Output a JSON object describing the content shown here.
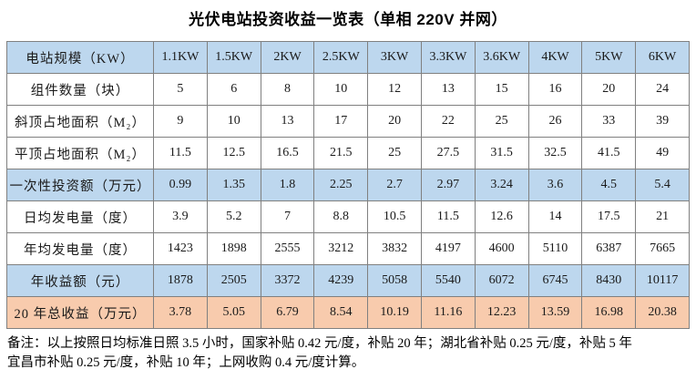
{
  "title": "光伏电站投资收益一览表（单相 220V 并网）",
  "table": {
    "rows": [
      {
        "label": "电站规模（KW）",
        "highlight": "blue",
        "values": [
          "1.1KW",
          "1.5KW",
          "2KW",
          "2.5KW",
          "3KW",
          "3.3KW",
          "3.6KW",
          "4KW",
          "5KW",
          "6KW"
        ]
      },
      {
        "label": "组件数量（块）",
        "highlight": "none",
        "values": [
          "5",
          "6",
          "8",
          "10",
          "12",
          "13",
          "15",
          "16",
          "20",
          "24"
        ]
      },
      {
        "label": "斜顶占地面积（M₂）",
        "highlight": "none",
        "values": [
          "9",
          "10",
          "13",
          "17",
          "20",
          "22",
          "25",
          "26",
          "33",
          "39"
        ]
      },
      {
        "label": "平顶占地面积（M₂）",
        "highlight": "none",
        "values": [
          "11.5",
          "12.5",
          "16.5",
          "21.5",
          "25",
          "27.5",
          "31.5",
          "32.5",
          "41.5",
          "49"
        ]
      },
      {
        "label": "一次性投资额（万元）",
        "highlight": "blue",
        "values": [
          "0.99",
          "1.35",
          "1.8",
          "2.25",
          "2.7",
          "2.97",
          "3.24",
          "3.6",
          "4.5",
          "5.4"
        ]
      },
      {
        "label": "日均发电量（度）",
        "highlight": "none",
        "values": [
          "3.9",
          "5.2",
          "7",
          "8.8",
          "10.5",
          "11.5",
          "12.6",
          "14",
          "17.5",
          "21"
        ]
      },
      {
        "label": "年均发电量（度）",
        "highlight": "none",
        "values": [
          "1423",
          "1898",
          "2555",
          "3212",
          "3832",
          "4197",
          "4600",
          "5110",
          "6387",
          "7665"
        ]
      },
      {
        "label": "年收益额（元）",
        "highlight": "blue",
        "values": [
          "1878",
          "2505",
          "3372",
          "4239",
          "5058",
          "5540",
          "6072",
          "6745",
          "8430",
          "10117"
        ]
      },
      {
        "label": "20 年总收益（万元）",
        "highlight": "orange",
        "values": [
          "3.78",
          "5.05",
          "6.79",
          "8.54",
          "10.19",
          "11.16",
          "12.23",
          "13.59",
          "16.98",
          "20.38"
        ]
      }
    ]
  },
  "notes": [
    "备注：以上按照日均标准日照 3.5 小时，国家补贴 0.42 元/度，补贴 20 年；湖北省补贴 0.25 元/度，补贴 5 年",
    "宜昌市补贴 0.25 元/度，补贴 10 年；上网收购 0.4 元/度计算。"
  ],
  "colors": {
    "highlight_blue": "#BDD7EE",
    "highlight_orange": "#F8CBAD",
    "border": "#808080",
    "text": "#1a1a1a"
  }
}
